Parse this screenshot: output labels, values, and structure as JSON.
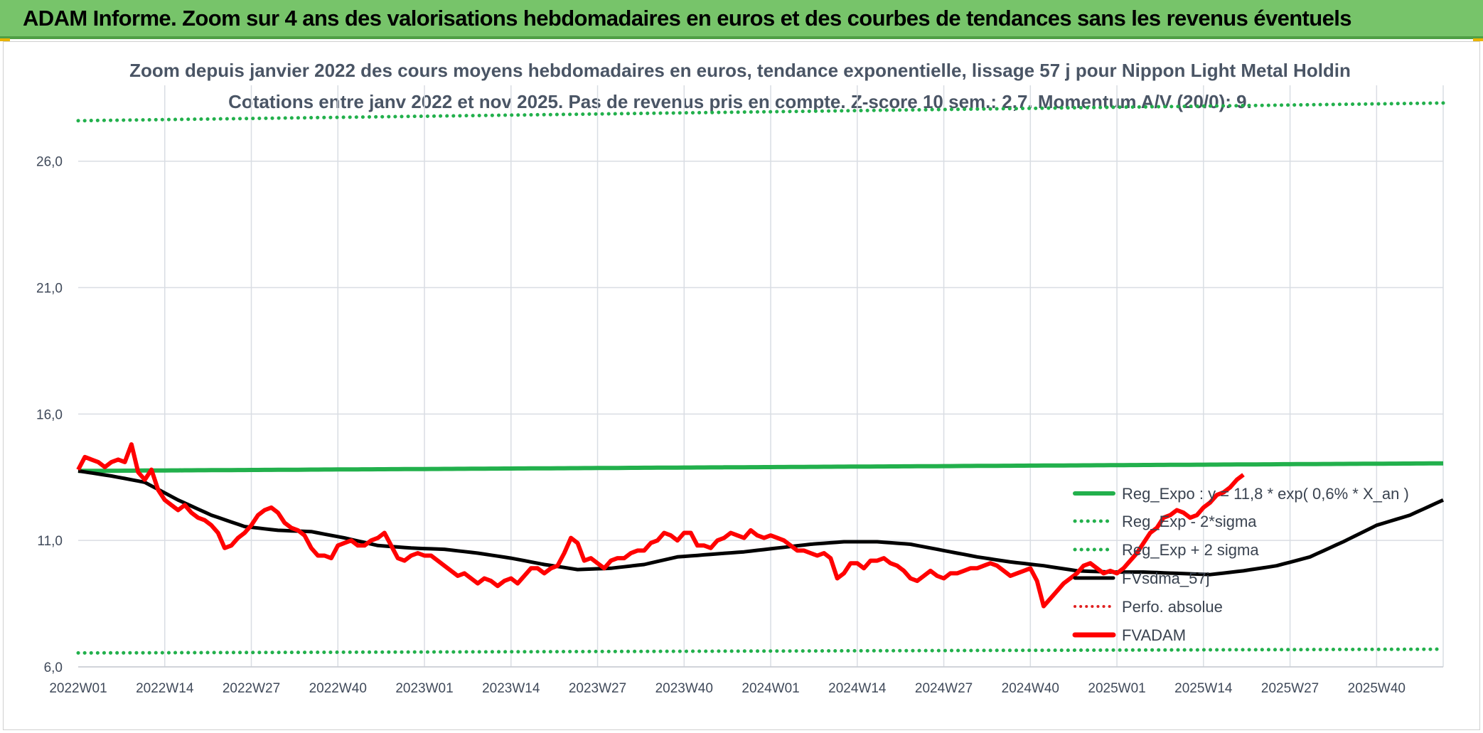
{
  "banner": {
    "title": "ADAM Informe. Zoom sur 4 ans des valorisations hebdomadaires en euros et des courbes de tendances sans les revenus éventuels"
  },
  "colors": {
    "banner_bg": "#77c46a",
    "reg_expo": "#22b04c",
    "bands": "#22b04c",
    "ma57": "#000000",
    "perfo": "#e02020",
    "fvadam": "#ff0000",
    "grid": "#d9dde3"
  },
  "chart_data": {
    "type": "line",
    "title_line1": "Zoom depuis janvier 2022 des cours moyens hebdomadaires en euros, tendance exponentielle, lissage 57 j pour Nippon Light Metal Holdin",
    "title_line2": "Cotations entre janv 2022 et nov 2025. Pas de revenus pris en compte. Z-score 10 sem.: 2,7. Momentum A/V (20/0): 9.",
    "ylim": [
      6,
      29
    ],
    "yticks": [
      "6,0",
      "11,0",
      "16,0",
      "21,0",
      "26,0"
    ],
    "ytick_values": [
      6,
      11,
      16,
      21,
      26
    ],
    "xticks": [
      "2022W01",
      "2022W14",
      "2022W27",
      "2022W40",
      "2023W01",
      "2023W14",
      "2023W27",
      "2023W40",
      "2024W01",
      "2024W14",
      "2024W27",
      "2024W40",
      "2025W01",
      "2025W14",
      "2025W27",
      "2025W40"
    ],
    "xtick_weeks": [
      0,
      13,
      26,
      39,
      52,
      65,
      78,
      91,
      104,
      117,
      130,
      143,
      156,
      169,
      182,
      195
    ],
    "n_weeks": 206,
    "grid": true,
    "legend_position": "lower-right",
    "series": [
      {
        "name": "Reg_Expo : y = 11,8 * exp( 0,6% *  X_an )",
        "style": "solid-thick",
        "start": 13.75,
        "end": 14.05
      },
      {
        "name": "Reg_Exp - 2*sigma",
        "style": "dotted",
        "start": 6.55,
        "end": 6.7
      },
      {
        "name": "Reg_Exp + 2 sigma",
        "style": "dotted",
        "start": 27.6,
        "end": 28.3
      },
      {
        "name": "FVsdma_57j",
        "style": "solid-medium",
        "keypoints": [
          [
            0,
            13.75
          ],
          [
            5,
            13.55
          ],
          [
            10,
            13.3
          ],
          [
            15,
            12.6
          ],
          [
            20,
            12.0
          ],
          [
            25,
            11.55
          ],
          [
            30,
            11.4
          ],
          [
            35,
            11.35
          ],
          [
            40,
            11.1
          ],
          [
            45,
            10.8
          ],
          [
            50,
            10.7
          ],
          [
            55,
            10.65
          ],
          [
            60,
            10.5
          ],
          [
            65,
            10.3
          ],
          [
            70,
            10.05
          ],
          [
            75,
            9.85
          ],
          [
            80,
            9.9
          ],
          [
            85,
            10.05
          ],
          [
            90,
            10.35
          ],
          [
            95,
            10.45
          ],
          [
            100,
            10.55
          ],
          [
            105,
            10.7
          ],
          [
            110,
            10.85
          ],
          [
            115,
            10.95
          ],
          [
            120,
            10.95
          ],
          [
            125,
            10.85
          ],
          [
            130,
            10.6
          ],
          [
            135,
            10.35
          ],
          [
            140,
            10.15
          ],
          [
            145,
            10.0
          ],
          [
            150,
            9.8
          ],
          [
            155,
            9.75
          ],
          [
            160,
            9.75
          ],
          [
            165,
            9.7
          ],
          [
            170,
            9.65
          ],
          [
            175,
            9.8
          ],
          [
            180,
            10.0
          ],
          [
            185,
            10.35
          ],
          [
            190,
            10.95
          ],
          [
            195,
            11.6
          ],
          [
            200,
            12.0
          ],
          [
            205,
            12.6
          ]
        ]
      },
      {
        "name": "Perfo. absolue",
        "style": "dotted-red"
      },
      {
        "name": "FVADAM",
        "style": "solid-thick-red",
        "keypoints": [
          [
            0,
            13.8
          ],
          [
            1,
            14.3
          ],
          [
            3,
            14.1
          ],
          [
            4,
            13.9
          ],
          [
            5,
            14.1
          ],
          [
            6,
            14.2
          ],
          [
            7,
            14.1
          ],
          [
            8,
            14.8
          ],
          [
            9,
            13.7
          ],
          [
            10,
            13.4
          ],
          [
            11,
            13.8
          ],
          [
            12,
            13.0
          ],
          [
            13,
            12.6
          ],
          [
            14,
            12.4
          ],
          [
            15,
            12.2
          ],
          [
            16,
            12.4
          ],
          [
            17,
            12.1
          ],
          [
            18,
            11.9
          ],
          [
            19,
            11.8
          ],
          [
            20,
            11.6
          ],
          [
            21,
            11.3
          ],
          [
            22,
            10.7
          ],
          [
            23,
            10.8
          ],
          [
            24,
            11.1
          ],
          [
            25,
            11.3
          ],
          [
            26,
            11.6
          ],
          [
            27,
            12.0
          ],
          [
            28,
            12.2
          ],
          [
            29,
            12.3
          ],
          [
            30,
            12.1
          ],
          [
            31,
            11.7
          ],
          [
            32,
            11.5
          ],
          [
            33,
            11.4
          ],
          [
            34,
            11.2
          ],
          [
            35,
            10.7
          ],
          [
            36,
            10.4
          ],
          [
            37,
            10.4
          ],
          [
            38,
            10.3
          ],
          [
            39,
            10.8
          ],
          [
            40,
            10.9
          ],
          [
            41,
            11.0
          ],
          [
            42,
            10.8
          ],
          [
            43,
            10.8
          ],
          [
            44,
            11.0
          ],
          [
            45,
            11.1
          ],
          [
            46,
            11.3
          ],
          [
            47,
            10.8
          ],
          [
            48,
            10.3
          ],
          [
            49,
            10.2
          ],
          [
            50,
            10.4
          ],
          [
            51,
            10.5
          ],
          [
            52,
            10.4
          ],
          [
            53,
            10.4
          ],
          [
            54,
            10.2
          ],
          [
            55,
            10.0
          ],
          [
            56,
            9.8
          ],
          [
            57,
            9.6
          ],
          [
            58,
            9.7
          ],
          [
            59,
            9.5
          ],
          [
            60,
            9.3
          ],
          [
            61,
            9.5
          ],
          [
            62,
            9.4
          ],
          [
            63,
            9.2
          ],
          [
            64,
            9.4
          ],
          [
            65,
            9.5
          ],
          [
            66,
            9.3
          ],
          [
            67,
            9.6
          ],
          [
            68,
            9.9
          ],
          [
            69,
            9.9
          ],
          [
            70,
            9.7
          ],
          [
            71,
            9.9
          ],
          [
            72,
            10.0
          ],
          [
            73,
            10.5
          ],
          [
            74,
            11.1
          ],
          [
            75,
            10.9
          ],
          [
            76,
            10.2
          ],
          [
            77,
            10.3
          ],
          [
            78,
            10.1
          ],
          [
            79,
            9.9
          ],
          [
            80,
            10.2
          ],
          [
            81,
            10.3
          ],
          [
            82,
            10.3
          ],
          [
            83,
            10.5
          ],
          [
            84,
            10.6
          ],
          [
            85,
            10.6
          ],
          [
            86,
            10.9
          ],
          [
            87,
            11.0
          ],
          [
            88,
            11.3
          ],
          [
            89,
            11.2
          ],
          [
            90,
            11.0
          ],
          [
            91,
            11.3
          ],
          [
            92,
            11.3
          ],
          [
            93,
            10.8
          ],
          [
            94,
            10.8
          ],
          [
            95,
            10.7
          ],
          [
            96,
            11.0
          ],
          [
            97,
            11.1
          ],
          [
            98,
            11.3
          ],
          [
            99,
            11.2
          ],
          [
            100,
            11.1
          ],
          [
            101,
            11.4
          ],
          [
            102,
            11.2
          ],
          [
            103,
            11.1
          ],
          [
            104,
            11.2
          ],
          [
            105,
            11.1
          ],
          [
            106,
            11.0
          ],
          [
            107,
            10.8
          ],
          [
            108,
            10.6
          ],
          [
            109,
            10.6
          ],
          [
            110,
            10.5
          ],
          [
            111,
            10.4
          ],
          [
            112,
            10.5
          ],
          [
            113,
            10.3
          ],
          [
            114,
            9.5
          ],
          [
            115,
            9.7
          ],
          [
            116,
            10.1
          ],
          [
            117,
            10.1
          ],
          [
            118,
            9.9
          ],
          [
            119,
            10.2
          ],
          [
            120,
            10.2
          ],
          [
            121,
            10.3
          ],
          [
            122,
            10.1
          ],
          [
            123,
            10.0
          ],
          [
            124,
            9.8
          ],
          [
            125,
            9.5
          ],
          [
            126,
            9.4
          ],
          [
            127,
            9.6
          ],
          [
            128,
            9.8
          ],
          [
            129,
            9.6
          ],
          [
            130,
            9.5
          ],
          [
            131,
            9.7
          ],
          [
            132,
            9.7
          ],
          [
            133,
            9.8
          ],
          [
            134,
            9.9
          ],
          [
            135,
            9.9
          ],
          [
            136,
            10.0
          ],
          [
            137,
            10.1
          ],
          [
            138,
            10.0
          ],
          [
            139,
            9.8
          ],
          [
            140,
            9.6
          ],
          [
            141,
            9.7
          ],
          [
            142,
            9.8
          ],
          [
            143,
            9.9
          ],
          [
            144,
            9.4
          ],
          [
            145,
            8.4
          ],
          [
            146,
            8.7
          ],
          [
            147,
            9.0
          ],
          [
            148,
            9.3
          ],
          [
            149,
            9.5
          ],
          [
            150,
            9.7
          ],
          [
            151,
            10.0
          ],
          [
            152,
            10.1
          ],
          [
            153,
            9.9
          ],
          [
            154,
            9.7
          ],
          [
            155,
            9.8
          ],
          [
            156,
            9.7
          ],
          [
            157,
            9.9
          ],
          [
            158,
            10.2
          ],
          [
            159,
            10.5
          ],
          [
            160,
            10.9
          ],
          [
            161,
            11.3
          ],
          [
            162,
            11.5
          ],
          [
            163,
            11.9
          ],
          [
            164,
            12.0
          ],
          [
            165,
            12.2
          ],
          [
            166,
            12.1
          ],
          [
            167,
            11.9
          ],
          [
            168,
            12.0
          ],
          [
            169,
            12.3
          ],
          [
            170,
            12.5
          ],
          [
            171,
            12.8
          ],
          [
            172,
            12.9
          ],
          [
            173,
            13.1
          ],
          [
            174,
            13.4
          ],
          [
            175,
            13.6
          ]
        ]
      }
    ]
  }
}
